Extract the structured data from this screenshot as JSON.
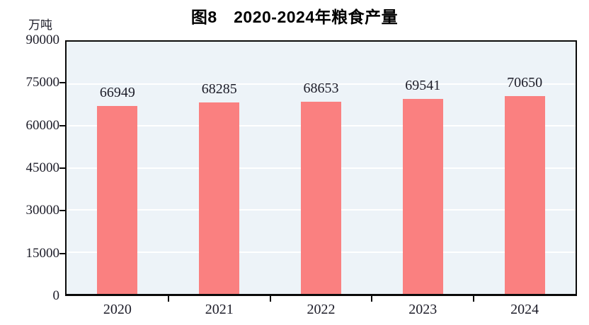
{
  "figure": {
    "title": "图8　2020-2024年粮食产量",
    "unit_label": "万吨"
  },
  "chart_data": {
    "type": "bar",
    "title": "图8　2020-2024年粮食产量",
    "categories": [
      "2020",
      "2021",
      "2022",
      "2023",
      "2024"
    ],
    "values": [
      66949,
      68285,
      68653,
      69541,
      70650
    ],
    "data_labels": [
      "66949",
      "68285",
      "68653",
      "69541",
      "70650"
    ],
    "xlabel": "",
    "ylabel": "万吨",
    "ylim": [
      0,
      90000
    ],
    "yticks": [
      0,
      15000,
      30000,
      45000,
      60000,
      75000,
      90000
    ],
    "grid": true,
    "legend_position": "none",
    "bar_color": "#fa8080",
    "plot_bg_color": "#edf3f8",
    "gridline_color": "#ffffff",
    "axis_color": "#0a0a0a",
    "text_color": "#1c1c28"
  }
}
